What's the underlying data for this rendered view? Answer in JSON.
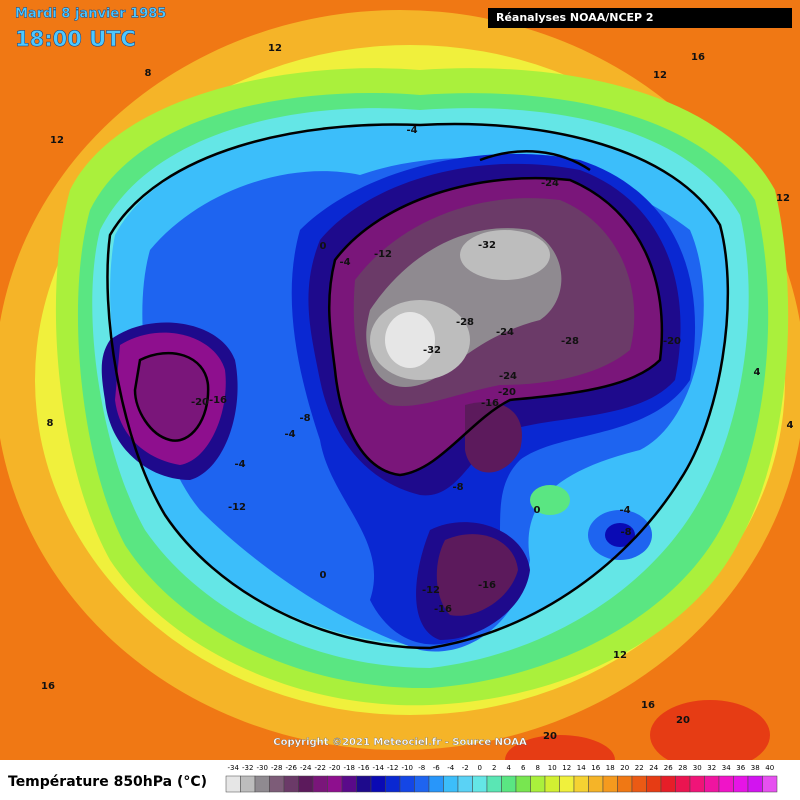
{
  "header": {
    "title": "Mardi 8 janvier 1985",
    "time": "18:00 UTC",
    "source_badge": "Réanalyses NOAA/NCEP 2"
  },
  "copyright": "Copyright ©2021 Meteociel.fr - Source NOAA",
  "legend": {
    "title": "Température 850hPa (°C)",
    "ticks": [
      -34,
      -32,
      -30,
      -28,
      -26,
      -24,
      -22,
      -20,
      -18,
      -16,
      -14,
      -12,
      -10,
      -8,
      -6,
      -4,
      -2,
      0,
      2,
      4,
      6,
      8,
      10,
      12,
      14,
      16,
      18,
      20,
      22,
      24,
      26,
      28,
      30,
      32,
      34,
      36,
      38,
      40
    ],
    "colors": [
      "#e6e6e6",
      "#bdbdbd",
      "#8f8a90",
      "#7d5c78",
      "#6b3a68",
      "#5c1a5c",
      "#7a167a",
      "#8e0f8e",
      "#5a0a8a",
      "#1e0a8c",
      "#0a0ab4",
      "#0a28d2",
      "#1446e6",
      "#1e64f0",
      "#2896fa",
      "#3cbefa",
      "#5ad2f5",
      "#64e6e6",
      "#5ae6b4",
      "#5ae682",
      "#78e650",
      "#aaf03c",
      "#d2f032",
      "#f0f03c",
      "#f5d232",
      "#f5b428",
      "#f59a1e",
      "#f07814",
      "#eb5a14",
      "#e63c14",
      "#e61e28",
      "#eb1450",
      "#f01478",
      "#f014a0",
      "#f014c8",
      "#e614e6",
      "#d214f0",
      "#e650f0"
    ]
  },
  "contour_labels": [
    12,
    8,
    12,
    16,
    12,
    -4,
    12,
    -24,
    -32,
    0,
    -12,
    -4,
    -28,
    -24,
    -28,
    -20,
    -32,
    -24,
    -20,
    -16,
    4,
    -20,
    -16,
    -8,
    -4,
    8,
    4,
    -4,
    -8,
    -12,
    0,
    -4,
    -8,
    0,
    -12,
    -16,
    -16,
    12,
    16,
    16,
    20,
    20
  ]
}
